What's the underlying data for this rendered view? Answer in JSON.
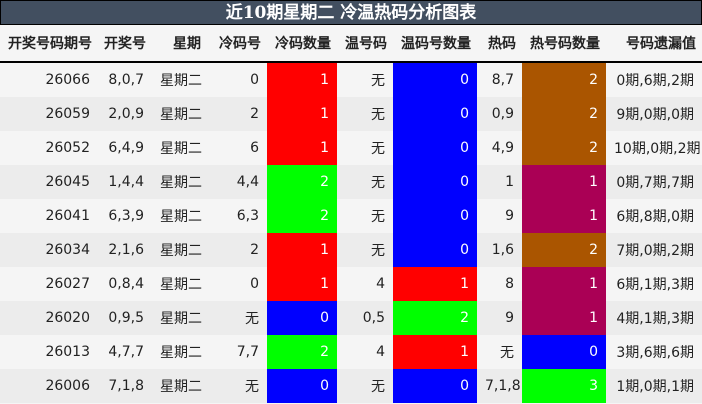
{
  "title": "近10期星期二 冷温热码分析图表",
  "colors": {
    "title_bg": "#424f60",
    "red": "#ff0000",
    "blue": "#0000ff",
    "green": "#00ff00",
    "brown": "#aa5500",
    "purple": "#aa0055"
  },
  "headers": [
    "开奖号码期号",
    "开奖号",
    "星期",
    "冷码号",
    "冷码数量",
    "温号码",
    "温码号数量",
    "热码",
    "热号码数量",
    "号码遗漏值"
  ],
  "rows": [
    {
      "issue": "26066",
      "draw": "8,0,7",
      "weekday": "星期二",
      "cold": "0",
      "cold_count": "1",
      "cold_color": "#ff0000",
      "warm": "无",
      "warm_count": "0",
      "warm_color": "#0000ff",
      "hot": "8,7",
      "hot_count": "2",
      "hot_color": "#aa5500",
      "miss": "0期,6期,2期"
    },
    {
      "issue": "26059",
      "draw": "2,0,9",
      "weekday": "星期二",
      "cold": "2",
      "cold_count": "1",
      "cold_color": "#ff0000",
      "warm": "无",
      "warm_count": "0",
      "warm_color": "#0000ff",
      "hot": "0,9",
      "hot_count": "2",
      "hot_color": "#aa5500",
      "miss": "9期,0期,0期"
    },
    {
      "issue": "26052",
      "draw": "6,4,9",
      "weekday": "星期二",
      "cold": "6",
      "cold_count": "1",
      "cold_color": "#ff0000",
      "warm": "无",
      "warm_count": "0",
      "warm_color": "#0000ff",
      "hot": "4,9",
      "hot_count": "2",
      "hot_color": "#aa5500",
      "miss": "10期,0期,2期"
    },
    {
      "issue": "26045",
      "draw": "1,4,4",
      "weekday": "星期二",
      "cold": "4,4",
      "cold_count": "2",
      "cold_color": "#00ff00",
      "warm": "无",
      "warm_count": "0",
      "warm_color": "#0000ff",
      "hot": "1",
      "hot_count": "1",
      "hot_color": "#aa0055",
      "miss": "0期,7期,7期"
    },
    {
      "issue": "26041",
      "draw": "6,3,9",
      "weekday": "星期二",
      "cold": "6,3",
      "cold_count": "2",
      "cold_color": "#00ff00",
      "warm": "无",
      "warm_count": "0",
      "warm_color": "#0000ff",
      "hot": "9",
      "hot_count": "1",
      "hot_color": "#aa0055",
      "miss": "6期,8期,0期"
    },
    {
      "issue": "26034",
      "draw": "2,1,6",
      "weekday": "星期二",
      "cold": "2",
      "cold_count": "1",
      "cold_color": "#ff0000",
      "warm": "无",
      "warm_count": "0",
      "warm_color": "#0000ff",
      "hot": "1,6",
      "hot_count": "2",
      "hot_color": "#aa5500",
      "miss": "7期,0期,2期"
    },
    {
      "issue": "26027",
      "draw": "0,8,4",
      "weekday": "星期二",
      "cold": "0",
      "cold_count": "1",
      "cold_color": "#ff0000",
      "warm": "4",
      "warm_count": "1",
      "warm_color": "#ff0000",
      "hot": "8",
      "hot_count": "1",
      "hot_color": "#aa0055",
      "miss": "6期,1期,3期"
    },
    {
      "issue": "26020",
      "draw": "0,9,5",
      "weekday": "星期二",
      "cold": "无",
      "cold_count": "0",
      "cold_color": "#0000ff",
      "warm": "0,5",
      "warm_count": "2",
      "warm_color": "#00ff00",
      "hot": "9",
      "hot_count": "1",
      "hot_color": "#aa0055",
      "miss": "4期,1期,3期"
    },
    {
      "issue": "26013",
      "draw": "4,7,7",
      "weekday": "星期二",
      "cold": "7,7",
      "cold_count": "2",
      "cold_color": "#00ff00",
      "warm": "4",
      "warm_count": "1",
      "warm_color": "#ff0000",
      "hot": "无",
      "hot_count": "0",
      "hot_color": "#0000ff",
      "miss": "3期,6期,6期"
    },
    {
      "issue": "26006",
      "draw": "7,1,8",
      "weekday": "星期二",
      "cold": "无",
      "cold_count": "0",
      "cold_color": "#0000ff",
      "warm": "无",
      "warm_count": "0",
      "warm_color": "#0000ff",
      "hot": "7,1,8",
      "hot_count": "3",
      "hot_color": "#00ff00",
      "miss": "1期,0期,1期"
    }
  ]
}
